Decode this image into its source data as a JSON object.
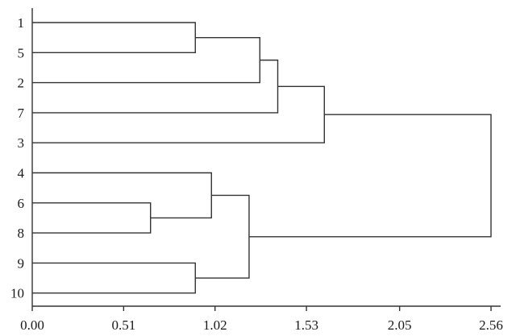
{
  "chart_data": {
    "type": "dendrogram",
    "orientation": "horizontal",
    "leaves": [
      "1",
      "5",
      "2",
      "7",
      "3",
      "4",
      "6",
      "8",
      "9",
      "10"
    ],
    "x_ticks": [
      "0.00",
      "0.51",
      "1.02",
      "1.53",
      "2.05",
      "2.56"
    ],
    "xlim": [
      0,
      2.56
    ],
    "merges": [
      {
        "children": [
          "6",
          "8"
        ],
        "height": 0.66
      },
      {
        "children": [
          "1",
          "5"
        ],
        "height": 0.91
      },
      {
        "children": [
          "9",
          "10"
        ],
        "height": 0.91
      },
      {
        "children": [
          "4",
          "6+8"
        ],
        "height": 1.0
      },
      {
        "children": [
          "4+6+8",
          "9+10"
        ],
        "height": 1.21
      },
      {
        "children": [
          "1+5",
          "2"
        ],
        "height": 1.27
      },
      {
        "children": [
          "1+5+2",
          "7"
        ],
        "height": 1.37
      },
      {
        "children": [
          "1+5+2+7",
          "3"
        ],
        "height": 1.63
      },
      {
        "children": [
          "1+5+2+7+3",
          "4+6+8+9+10"
        ],
        "height": 2.56
      }
    ]
  }
}
